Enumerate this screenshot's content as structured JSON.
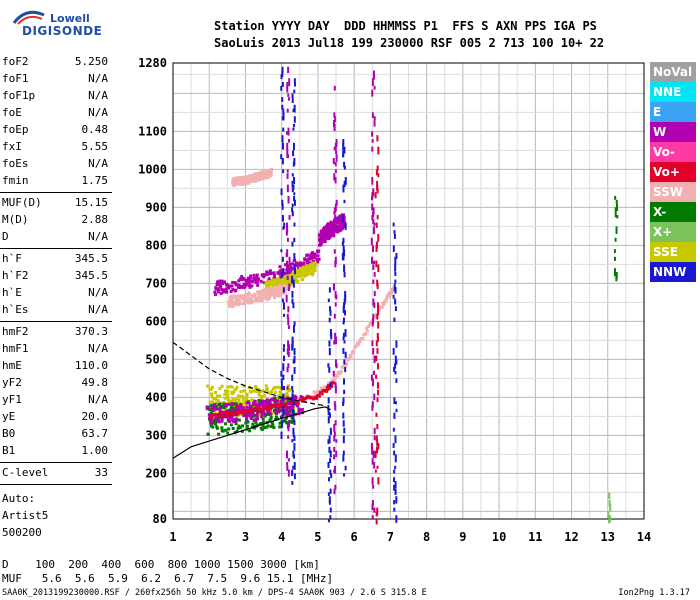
{
  "logo": {
    "line1": "Lowell",
    "line2": "DIGISONDE"
  },
  "header": {
    "line1": "Station YYYY DAY  DDD HHMMSS P1  FFS S AXN PPS IGA PS",
    "line2": "SaoLuis 2013 Jul18 199 230000 RSF 005 2 713 100 10+ 22"
  },
  "params_group1": [
    {
      "label": "foF2",
      "value": "5.250"
    },
    {
      "label": "foF1",
      "value": "N/A"
    },
    {
      "label": "foF1p",
      "value": "N/A"
    },
    {
      "label": "foE",
      "value": "N/A"
    },
    {
      "label": "foEp",
      "value": "0.48"
    },
    {
      "label": "fxI",
      "value": "5.55"
    },
    {
      "label": "foEs",
      "value": "N/A"
    },
    {
      "label": "fmin",
      "value": "1.75"
    }
  ],
  "params_group2": [
    {
      "label": "MUF(D)",
      "value": "15.15"
    },
    {
      "label": "M(D)",
      "value": "2.88"
    },
    {
      "label": "D",
      "value": "N/A"
    }
  ],
  "params_group3": [
    {
      "label": "h`F",
      "value": "345.5"
    },
    {
      "label": "h`F2",
      "value": "345.5"
    },
    {
      "label": "h`E",
      "value": "N/A"
    },
    {
      "label": "h`Es",
      "value": "N/A"
    }
  ],
  "params_group4": [
    {
      "label": "hmF2",
      "value": "370.3"
    },
    {
      "label": "hmF1",
      "value": "N/A"
    },
    {
      "label": "hmE",
      "value": "110.0"
    },
    {
      "label": "yF2",
      "value": "49.8"
    },
    {
      "label": "yF1",
      "value": "N/A"
    },
    {
      "label": "yE",
      "value": "20.0"
    },
    {
      "label": "B0",
      "value": "63.7"
    },
    {
      "label": "B1",
      "value": "1.00"
    }
  ],
  "params_group5": [
    {
      "label": "C-level",
      "value": "33"
    }
  ],
  "auto_info": [
    "Auto:",
    "Artist5",
    "500200"
  ],
  "legend": [
    {
      "label": "NoVal",
      "color": "#a0a0a0"
    },
    {
      "label": "NNE",
      "color": "#00e5f2"
    },
    {
      "label": "E",
      "color": "#3aa4f2"
    },
    {
      "label": "W",
      "color": "#b000b0"
    },
    {
      "label": "Vo-",
      "color": "#ff3aa4"
    },
    {
      "label": "Vo+",
      "color": "#e0002a"
    },
    {
      "label": "SSW",
      "color": "#f2b0b0"
    },
    {
      "label": "X-",
      "color": "#007a00"
    },
    {
      "label": "X+",
      "color": "#7ac25a"
    },
    {
      "label": "SSE",
      "color": "#c8c800"
    },
    {
      "label": "NNW",
      "color": "#1818d0"
    }
  ],
  "footer": {
    "d_row": "D    100  200  400  600  800 1000 1500 3000 [km]",
    "muf_row": "MUF   5.6  5.6  5.9  6.2  6.7  7.5  9.6 15.1 [MHz]",
    "info": "SAA0K_2013199230000.RSF / 260fx256h 50 kHz 5.0 km / DPS-4 SAA0K 903 / 2.6 S 315.8 E",
    "version": "Ion2Png 1.3.17"
  },
  "chart_data": {
    "type": "scatter",
    "x_ticks": [
      "1",
      "2",
      "3",
      "4",
      "5",
      "6",
      "7",
      "8",
      "9",
      "10",
      "11",
      "12",
      "13",
      "14"
    ],
    "y_ticks": [
      "80",
      "200",
      "300",
      "400",
      "500",
      "600",
      "700",
      "800",
      "900",
      "1000",
      "1100",
      "1280"
    ],
    "xlim": [
      1,
      14
    ],
    "ylim": [
      80,
      1280
    ],
    "grid": true,
    "legend_position": "right",
    "traces": [
      {
        "color": "#f2b0b0",
        "points": [
          [
            4.6,
            400
          ],
          [
            4.9,
            415
          ],
          [
            5.2,
            430
          ],
          [
            5.5,
            460
          ],
          [
            5.8,
            505
          ],
          [
            6.1,
            550
          ],
          [
            6.4,
            595
          ],
          [
            6.7,
            640
          ],
          [
            6.9,
            670
          ],
          [
            7.1,
            695
          ]
        ]
      },
      {
        "color": "#e0002a",
        "points": [
          [
            2.0,
            355
          ],
          [
            2.5,
            360
          ],
          [
            3.0,
            365
          ],
          [
            3.5,
            375
          ],
          [
            4.0,
            385
          ],
          [
            4.5,
            395
          ],
          [
            4.9,
            405
          ],
          [
            5.2,
            425
          ],
          [
            5.4,
            445
          ]
        ]
      }
    ],
    "bands": [
      {
        "color": "#b000b0",
        "x0": 2.1,
        "x1": 5.0,
        "y0s": [
          690,
          705,
          720,
          745,
          775
        ],
        "width": 18
      },
      {
        "color": "#b000b0",
        "x0": 5.0,
        "x1": 5.7,
        "y0s": [
          820,
          850,
          870
        ],
        "width": 20
      },
      {
        "color": "#c8c800",
        "x0": 3.5,
        "x1": 4.9,
        "y0s": [
          690,
          705,
          725,
          745
        ],
        "width": 16
      },
      {
        "color": "#f2b0b0",
        "x0": 2.5,
        "x1": 4.1,
        "y0s": [
          655,
          665,
          675,
          690
        ],
        "width": 14
      },
      {
        "color": "#f2b0b0",
        "x0": 2.6,
        "x1": 3.7,
        "y0s": [
          970,
          975,
          985,
          995
        ],
        "width": 10
      },
      {
        "color": "#c8c800",
        "x0": 1.9,
        "x1": 4.3,
        "y0s": [
          395,
          395,
          395,
          395
        ],
        "width": 40
      },
      {
        "color": "#007a00",
        "x0": 1.9,
        "x1": 4.3,
        "y0s": [
          345,
          350,
          360,
          370
        ],
        "width": 40
      },
      {
        "color": "#b000b0",
        "x0": 1.9,
        "x1": 4.6,
        "y0s": [
          360,
          365,
          375,
          385
        ],
        "width": 25
      }
    ],
    "verticals": [
      {
        "x": 4.0,
        "y0": 290,
        "y1": 1280,
        "color": "#1818d0"
      },
      {
        "x": 4.15,
        "y0": 200,
        "y1": 1280,
        "color": "#b000b0"
      },
      {
        "x": 4.3,
        "y0": 180,
        "y1": 1250,
        "color": "#1818d0"
      },
      {
        "x": 5.3,
        "y0": 80,
        "y1": 700,
        "color": "#1818d0"
      },
      {
        "x": 5.45,
        "y0": 150,
        "y1": 1240,
        "color": "#b000b0"
      },
      {
        "x": 5.7,
        "y0": 200,
        "y1": 1100,
        "color": "#1818d0"
      },
      {
        "x": 6.5,
        "y0": 80,
        "y1": 1280,
        "color": "#b000b0"
      },
      {
        "x": 6.6,
        "y0": 80,
        "y1": 1100,
        "color": "#e0002a"
      },
      {
        "x": 7.1,
        "y0": 80,
        "y1": 880,
        "color": "#1818d0"
      },
      {
        "x": 13.2,
        "y0": 720,
        "y1": 950,
        "color": "#007a00"
      },
      {
        "x": 13.0,
        "y0": 80,
        "y1": 170,
        "color": "#7ac25a"
      }
    ],
    "profile_solid": [
      [
        1.0,
        240
      ],
      [
        1.5,
        270
      ],
      [
        2.0,
        285
      ],
      [
        2.5,
        300
      ],
      [
        3.0,
        315
      ],
      [
        3.5,
        330
      ],
      [
        4.0,
        345
      ],
      [
        4.5,
        358
      ],
      [
        4.9,
        370
      ],
      [
        5.2,
        375
      ],
      [
        5.35,
        368
      ]
    ],
    "profile_dashed": [
      [
        1.0,
        545
      ],
      [
        1.5,
        510
      ],
      [
        2.0,
        475
      ],
      [
        2.5,
        450
      ],
      [
        3.0,
        430
      ],
      [
        3.5,
        415
      ],
      [
        4.0,
        400
      ],
      [
        4.5,
        390
      ],
      [
        4.9,
        383
      ],
      [
        5.2,
        378
      ]
    ]
  }
}
